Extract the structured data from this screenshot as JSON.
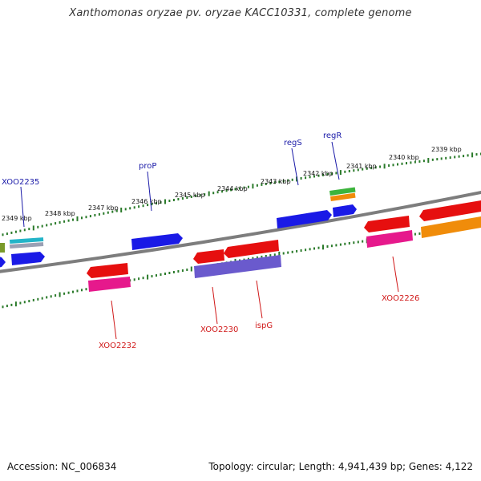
{
  "title": "Xanthomonas oryzae pv. oryzae KACC10331, complete genome",
  "accession": "Accession: NC_006834",
  "summary": "Topology: circular; Length: 4,941,439 bp; Genes: 4,122",
  "ticks": [
    "2339 kbp",
    "2340 kbp",
    "2341 kbp",
    "2342 kbp",
    "2343 kbp",
    "2344 kbp",
    "2345 kbp",
    "2346 kbp",
    "2347 kbp",
    "2348 kbp",
    "2349 kbp"
  ],
  "gene_labels": {
    "fwd": [
      "regR",
      "regS",
      "proP",
      "XOO2235"
    ],
    "rev": [
      "XOO2226",
      "ispG",
      "XOO2230",
      "XOO2232"
    ]
  },
  "colors": {
    "blue": "#1a1ae6",
    "red": "#e60f0f",
    "pink": "#e6198c",
    "purple": "#6a5acd",
    "orange": "#f08c0a",
    "green": "#3cb43c",
    "cyan": "#23b4c8",
    "olive": "#7a9a2a",
    "backbone": "#808080",
    "tick": "#2a7a2a"
  }
}
